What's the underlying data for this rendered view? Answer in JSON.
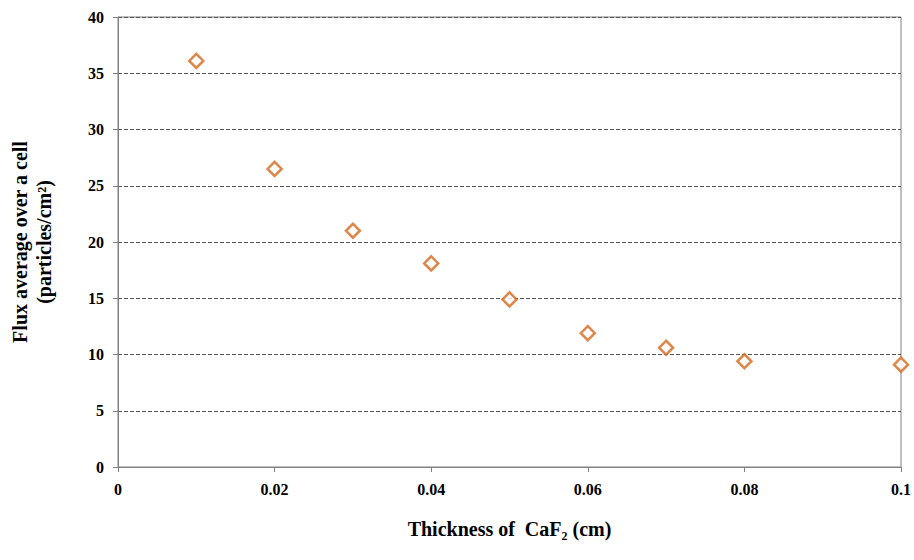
{
  "chart_data": {
    "type": "scatter",
    "xlabel": "Thickness of  CaF₂ (cm)",
    "ylabel": "Flux average over a cell\n(particles/cm²)",
    "x": [
      0.01,
      0.02,
      0.03,
      0.04,
      0.05,
      0.06,
      0.07,
      0.08,
      0.1
    ],
    "values": [
      36.1,
      26.5,
      21.0,
      18.1,
      14.9,
      11.9,
      10.6,
      9.4,
      9.1
    ],
    "color": "#d4691e",
    "marker": "diamond",
    "xlim": [
      0,
      0.1
    ],
    "xticks": [
      0,
      0.02,
      0.04,
      0.06,
      0.08,
      0.1
    ],
    "ylim": [
      0,
      40
    ],
    "yticks": [
      0,
      5,
      10,
      15,
      20,
      25,
      30,
      35,
      40
    ],
    "grid": true
  }
}
